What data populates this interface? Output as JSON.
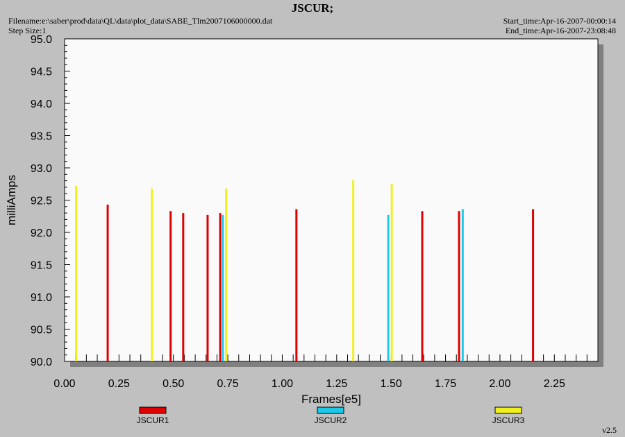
{
  "header": {
    "title": "JSCUR;",
    "filename": "Filename:e:\\saber\\prod\\data\\QL\\data\\plot_data\\SABE_Tlm2007106000000.dat",
    "step_size": "Step Size:1",
    "start_time": "Start_time:Apr-16-2007-00:00:14",
    "end_time": "End_time:Apr-16-2007-23:08:48",
    "version": "v2.5"
  },
  "colors": {
    "background": "#c0c0c0",
    "plot_area": "#fafafa",
    "shadow": "#808080",
    "JSCUR1": "#e00000",
    "JSCUR2": "#20c8e8",
    "JSCUR3": "#f0f020"
  },
  "chart_data": {
    "type": "bar",
    "title": "JSCUR;",
    "xlabel": "Frames[e5]",
    "ylabel": "milliAmps",
    "xlim": [
      0,
      2.45
    ],
    "ylim": [
      90.0,
      95.0
    ],
    "xticks": [
      "0.00",
      "0.25",
      "0.50",
      "0.75",
      "1.00",
      "1.25",
      "1.50",
      "1.75",
      "2.00",
      "2.25"
    ],
    "yticks": [
      "90.0",
      "90.5",
      "91.0",
      "91.5",
      "92.0",
      "92.5",
      "93.0",
      "93.5",
      "94.0",
      "94.5",
      "95.0"
    ],
    "legend_position": "bottom",
    "grid": false,
    "series": [
      {
        "name": "JSCUR1",
        "color": "#e00000",
        "points": [
          {
            "x": 0.198,
            "y": 92.43
          },
          {
            "x": 0.487,
            "y": 92.33
          },
          {
            "x": 0.545,
            "y": 92.3
          },
          {
            "x": 0.657,
            "y": 92.27
          },
          {
            "x": 0.715,
            "y": 92.3
          },
          {
            "x": 1.065,
            "y": 92.36
          },
          {
            "x": 1.643,
            "y": 92.33
          },
          {
            "x": 1.812,
            "y": 92.33
          },
          {
            "x": 2.152,
            "y": 92.36
          }
        ]
      },
      {
        "name": "JSCUR2",
        "color": "#20c8e8",
        "points": [
          {
            "x": 0.727,
            "y": 92.27
          },
          {
            "x": 1.487,
            "y": 92.27
          },
          {
            "x": 1.829,
            "y": 92.36
          }
        ]
      },
      {
        "name": "JSCUR3",
        "color": "#f0f020",
        "points": [
          {
            "x": 0.053,
            "y": 92.72
          },
          {
            "x": 0.401,
            "y": 92.68
          },
          {
            "x": 0.742,
            "y": 92.68
          },
          {
            "x": 1.326,
            "y": 92.81
          },
          {
            "x": 1.503,
            "y": 92.75
          }
        ]
      }
    ]
  }
}
